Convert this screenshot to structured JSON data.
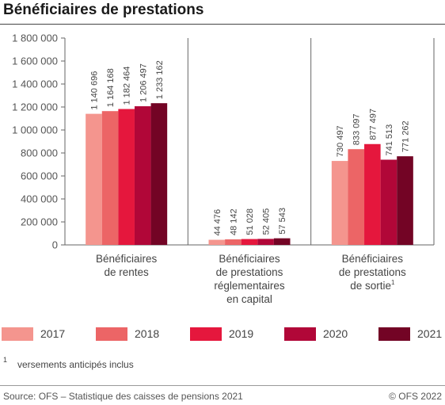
{
  "title": "Bénéficiaires de prestations",
  "footnote": {
    "marker": "1",
    "text": "versements anticipés inclus"
  },
  "source": "Source: OFS – Statistique des caisses de pensions 2021",
  "copyright": "© OFS 2022",
  "colors": {
    "2017": "#f4958e",
    "2018": "#ec6566",
    "2019": "#e5173d",
    "2020": "#b10738",
    "2021": "#730425"
  },
  "chart_data": {
    "type": "bar",
    "title": "Bénéficiaires de prestations",
    "categories": [
      {
        "lines": [
          "Bénéficiaires",
          "de rentes"
        ],
        "superscript": ""
      },
      {
        "lines": [
          "Bénéficiaires",
          "de prestations",
          "réglementaires",
          "en capital"
        ],
        "superscript": ""
      },
      {
        "lines": [
          "Bénéficiaires",
          "de prestations",
          "de sortie"
        ],
        "superscript": "1"
      }
    ],
    "series": [
      {
        "name": "2017",
        "values": [
          1140696,
          44476,
          730497
        ],
        "labels": [
          "1 140 696",
          "44 476",
          "730 497"
        ]
      },
      {
        "name": "2018",
        "values": [
          1164168,
          48142,
          833097
        ],
        "labels": [
          "1 164 168",
          "48 142",
          "833 097"
        ]
      },
      {
        "name": "2019",
        "values": [
          1182464,
          51028,
          877497
        ],
        "labels": [
          "1 182 464",
          "51 028",
          "877 497"
        ]
      },
      {
        "name": "2020",
        "values": [
          1206497,
          52405,
          741513
        ],
        "labels": [
          "1 206 497",
          "52 405",
          "741 513"
        ]
      },
      {
        "name": "2021",
        "values": [
          1233162,
          57543,
          771262
        ],
        "labels": [
          "1 233 162",
          "57 543",
          "771 262"
        ]
      }
    ],
    "yticks": [
      0,
      200000,
      400000,
      600000,
      800000,
      1000000,
      1200000,
      1400000,
      1600000,
      1800000
    ],
    "ytick_labels": [
      "0",
      "200 000",
      "400 000",
      "600 000",
      "800 000",
      "1 000 000",
      "1 200 000",
      "1 400 000",
      "1 600 000",
      "1 800 000"
    ],
    "ylim": [
      0,
      1800000
    ],
    "grid": false,
    "legend_position": "bottom"
  }
}
